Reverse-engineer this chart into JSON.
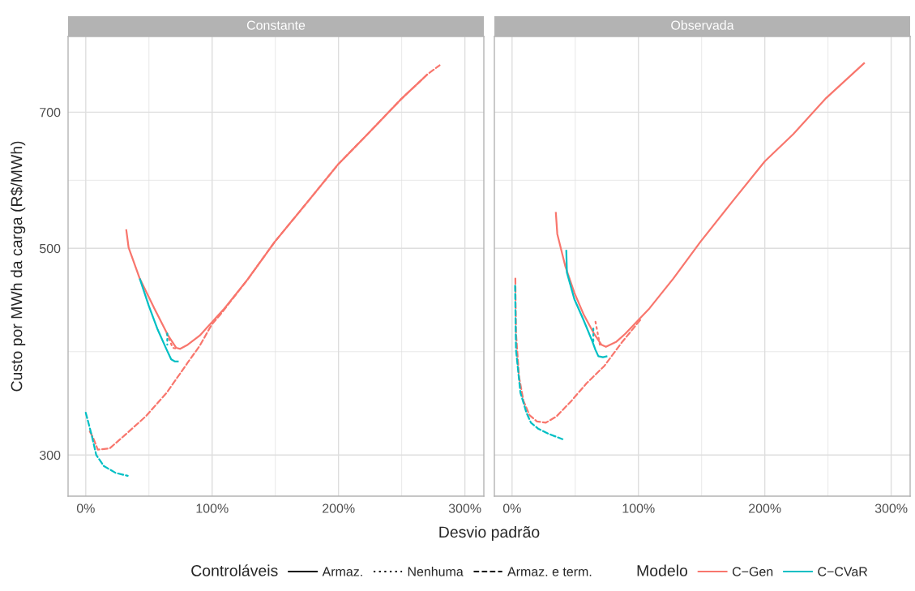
{
  "chart_data": [
    {
      "type": "line",
      "title": "Constante",
      "xlabel": "Desvio padrão",
      "ylabel": "Custo por MWh da carga (R$/MWh)",
      "legend": "bottom",
      "legend_title": [
        "Controláveis",
        "Modelo"
      ],
      "annotations": [
        "Armaz.",
        "Nenhuma",
        "Armaz. e term."
      ],
      "log": "y",
      "grid": true,
      "xlim": [
        -14,
        315
      ],
      "xticks": [
        {
          "value": 0,
          "label": "0%"
        },
        {
          "value": 100,
          "label": "100%"
        },
        {
          "value": 200,
          "label": "200%"
        },
        {
          "value": 300,
          "label": "300%"
        }
      ],
      "ylim": [
        271,
        844
      ],
      "yticks": [
        300,
        500,
        700
      ],
      "series": [
        {
          "name": "C−Gen",
          "line_style": "solid",
          "color": "#f8766d",
          "x": [
            32.0,
            33.9,
            42.7,
            54.6,
            65.2,
            71.6,
            74.7,
            80.7,
            90.2,
            100.1,
            109.1,
            128.1,
            149.5,
            175.6,
            200,
            223,
            249.1,
            270.5
          ],
          "values": [
            524,
            501,
            464,
            430,
            403,
            391,
            390,
            394,
            403,
            417,
            430,
            463,
            508,
            561,
            616,
            663,
            722,
            769
          ]
        },
        {
          "line_style": "dotted",
          "color": "#f8766d",
          "x": [
            64.1,
            66.5,
            68.8,
            72.4
          ],
          "values": [
            405,
            398,
            391,
            390
          ]
        },
        {
          "line_style": "dashed",
          "color": "#f8766d",
          "x": [
            3.2,
            5.9,
            9.5,
            19.0,
            30.8,
            47.4,
            64.1,
            80.7,
            90.2,
            99.6,
            106.8,
            128.1,
            149.5,
            175.6,
            200,
            223,
            249.1,
            270.5,
            280
          ],
          "values": [
            318,
            313,
            304,
            305,
            315,
            330,
            350,
            377,
            393,
            414,
            425,
            463,
            508,
            561,
            616,
            663,
            722,
            769,
            786
          ]
        },
        {
          "name": "C−CVaR",
          "line_style": "solid",
          "color": "#00bfc4",
          "x": [
            42.7,
            49.8,
            56.9,
            64.1,
            67.6,
            70.7,
            73.5
          ],
          "values": [
            464,
            434,
            409,
            389,
            380,
            378,
            378
          ]
        },
        {
          "line_style": "dotted",
          "color": "#00bfc4",
          "x": [
            64.5,
            64.5
          ],
          "values": [
            405,
            394
          ]
        },
        {
          "line_style": "dashed",
          "color": "#00bfc4",
          "x": [
            0,
            4.7,
            8.3,
            14.2,
            23.7,
            33.2
          ],
          "values": [
            333,
            315,
            300,
            292,
            287,
            285
          ]
        }
      ]
    },
    {
      "type": "line",
      "title": "Observada",
      "log": "y",
      "grid": true,
      "tick_labels": "x",
      "xlim": [
        -14,
        315
      ],
      "xticks": [
        {
          "value": 0,
          "label": "0%"
        },
        {
          "value": 100,
          "label": "100%"
        },
        {
          "value": 200,
          "label": "200%"
        },
        {
          "value": 300,
          "label": "300%"
        }
      ],
      "ylim": [
        271,
        844
      ],
      "yticks": [
        300,
        500,
        700
      ],
      "series": [
        {
          "line_style": "solid",
          "color": "#f8766d",
          "x": [
            34.6,
            35.8,
            42.2,
            49.3,
            56.5,
            64.8,
            70.7,
            74.3,
            82.6,
            89.7,
            100.1,
            108.7,
            127.6,
            149.0,
            175.1,
            200,
            222.5,
            248.6,
            279
          ],
          "values": [
            547,
            518,
            478,
            448,
            425,
            405,
            394,
            392,
            397,
            405,
            419,
            431,
            464,
            508,
            563,
            620,
            663,
            725,
            791
          ]
        },
        {
          "line_style": "dotted",
          "color": "#f8766d",
          "x": [
            66.0,
            69.5
          ],
          "values": [
            417,
            394
          ]
        },
        {
          "line_style": "dashed",
          "color": "#f8766d",
          "x": [
            2.6,
            3.1,
            5.5,
            9.0,
            13.8,
            19.7,
            26.8,
            35.1,
            47.0,
            58.8,
            73.1,
            87.3,
            101.5
          ],
          "values": [
            464,
            406,
            364,
            343,
            331,
            326,
            325,
            330,
            343,
            358,
            374,
            397,
            419
          ]
        },
        {
          "line_style": "solid",
          "color": "#00bfc4",
          "x": [
            42.9,
            43.4,
            49.3,
            56.5,
            63.6,
            66.0,
            68.3,
            71.9,
            75.4
          ],
          "values": [
            498,
            471,
            441,
            419,
            397,
            389,
            383,
            382,
            383
          ]
        },
        {
          "line_style": "dotted",
          "color": "#00bfc4",
          "x": [
            64.3,
            64.3
          ],
          "values": [
            410,
            394
          ]
        },
        {
          "line_style": "dashed",
          "color": "#00bfc4",
          "x": [
            2.4,
            3.1,
            6.6,
            11.4,
            14.9,
            20.9,
            29.2,
            39.9
          ],
          "values": [
            456,
            389,
            350,
            333,
            325,
            320,
            316,
            312
          ]
        }
      ]
    }
  ]
}
